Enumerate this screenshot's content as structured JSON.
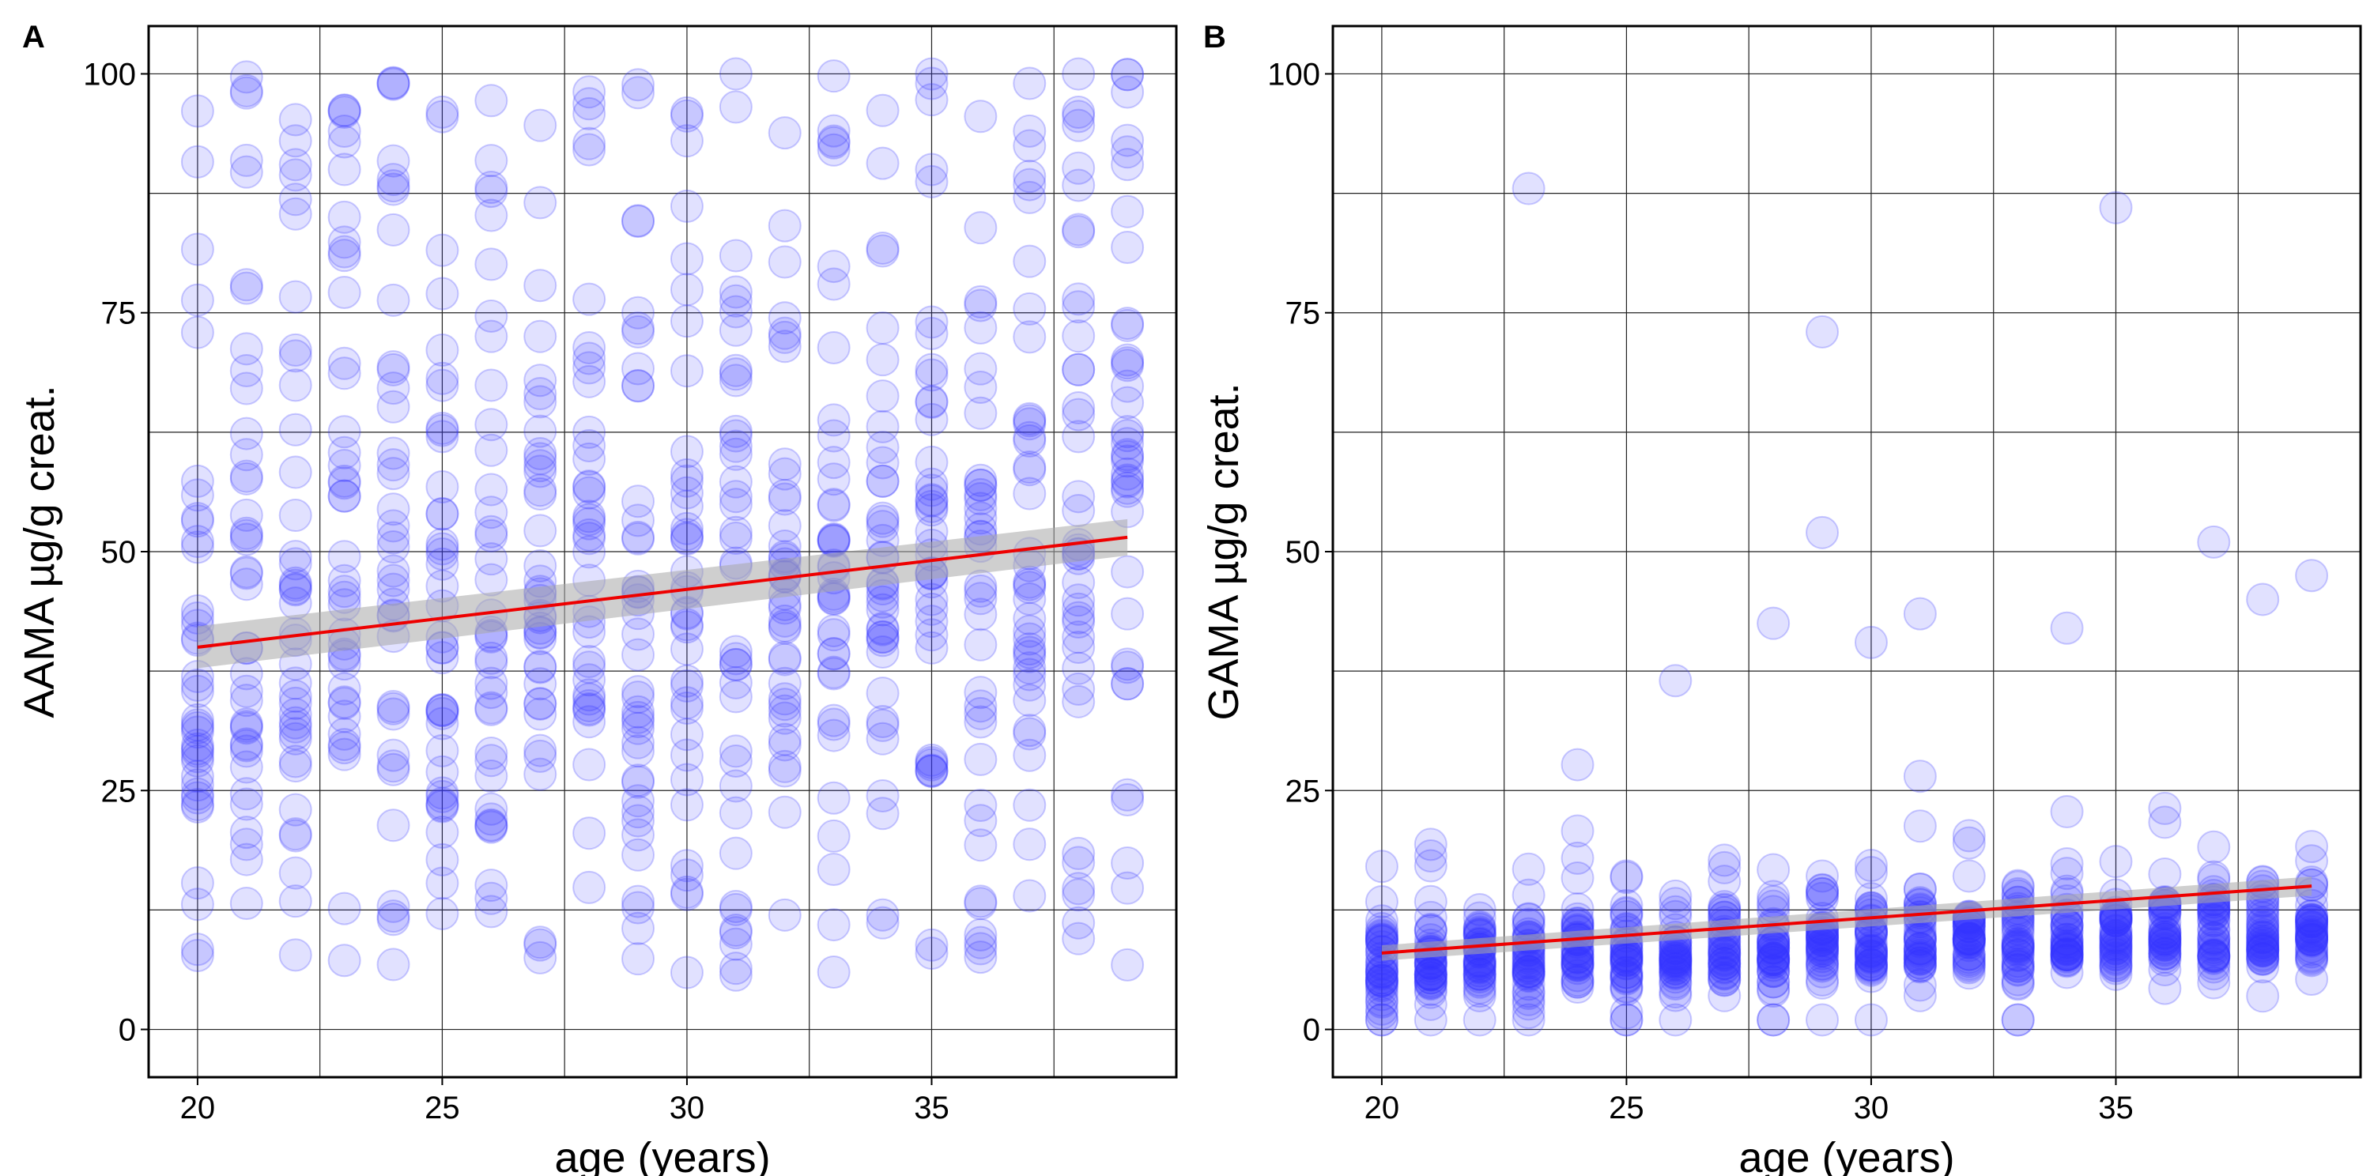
{
  "chart_data": [
    {
      "panel_label": "A",
      "type": "scatter",
      "title": "",
      "xlabel": "age (years)",
      "ylabel": "AAMA µg/g creat.",
      "xlim": [
        19.0,
        40.0
      ],
      "ylim": [
        -5,
        105
      ],
      "xticks": [
        20,
        25,
        30,
        35
      ],
      "xtick_labels": [
        "20",
        "25",
        "30",
        "35"
      ],
      "yticks": [
        0,
        25,
        50,
        75,
        100
      ],
      "ytick_labels": [
        "0",
        "25",
        "50",
        "75",
        "100"
      ],
      "x_minor_gridlines": [
        22.5,
        27.5,
        32.5,
        37.5
      ],
      "y_minor_gridlines": [
        12.5,
        37.5,
        62.5,
        87.5
      ],
      "grid": true,
      "point_color": "#3333ff",
      "point_opacity": 0.15,
      "fit_color": "#ee0000",
      "band_color": "#a8a8a8",
      "fit_line": {
        "x": [
          20,
          39
        ],
        "y": [
          40.0,
          51.5
        ]
      },
      "confidence_band": {
        "x": [
          20,
          39
        ],
        "lower": [
          37.8,
          49.6
        ],
        "upper": [
          42.2,
          53.4
        ]
      },
      "distribution": {
        "x_min": 20,
        "x_max": 39,
        "n_per_age": 38,
        "y_min": 5,
        "y_max": 100,
        "center_start": 38,
        "center_end": 48,
        "spread": 20,
        "seed": 11
      },
      "x": [
        21,
        22,
        23,
        23,
        25,
        29,
        29,
        31,
        33,
        35,
        37,
        38
      ],
      "y": [
        98,
        90.5,
        85,
        81,
        96,
        75,
        73,
        100,
        6,
        99,
        99,
        9.5
      ]
    },
    {
      "panel_label": "B",
      "type": "scatter",
      "title": "",
      "xlabel": "age (years)",
      "ylabel": "GAMA µg/g creat.",
      "xlim": [
        19.0,
        40.0
      ],
      "ylim": [
        -5,
        105
      ],
      "xticks": [
        20,
        25,
        30,
        35
      ],
      "xtick_labels": [
        "20",
        "25",
        "30",
        "35"
      ],
      "yticks": [
        0,
        25,
        50,
        75,
        100
      ],
      "ytick_labels": [
        "0",
        "25",
        "50",
        "75",
        "100"
      ],
      "x_minor_gridlines": [
        22.5,
        27.5,
        32.5,
        37.5
      ],
      "y_minor_gridlines": [
        12.5,
        37.5,
        62.5,
        87.5
      ],
      "grid": true,
      "point_color": "#3333ff",
      "point_opacity": 0.15,
      "fit_color": "#ee0000",
      "band_color": "#a8a8a8",
      "fit_line": {
        "x": [
          20,
          39
        ],
        "y": [
          8.0,
          15.0
        ]
      },
      "confidence_band": {
        "x": [
          20,
          39
        ],
        "lower": [
          7.2,
          14.0
        ],
        "upper": [
          8.8,
          16.0
        ]
      },
      "distribution": {
        "x_min": 20,
        "x_max": 39,
        "n_per_age": 38,
        "y_min": 1,
        "y_max": 30,
        "center_start": 7,
        "center_end": 10,
        "spread": 5,
        "seed": 23
      },
      "x": [
        23,
        35,
        29,
        29,
        37,
        39,
        38,
        34,
        31,
        30,
        28,
        26
      ],
      "y": [
        88,
        86,
        73,
        52,
        51,
        47.5,
        45,
        42,
        43.5,
        40.5,
        42.5,
        36.5
      ]
    }
  ]
}
